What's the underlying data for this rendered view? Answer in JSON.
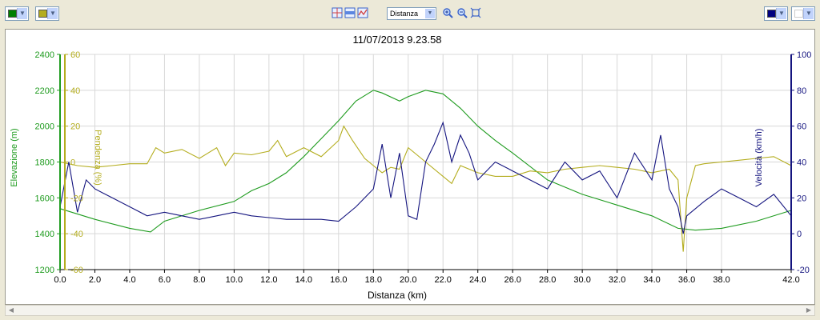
{
  "toolbar": {
    "left_color_1": "#008000",
    "left_color_2": "#b4ad1e",
    "right_color_1": "#000080",
    "right_color_2": "#ffffff",
    "mode_select": "Distanza",
    "icons": [
      "grid-icon",
      "band-icon",
      "line-chart-icon",
      "zoom-in-icon",
      "zoom-out-icon",
      "zoom-fit-icon"
    ]
  },
  "colors": {
    "elevation": "#1e9b1e",
    "slope": "#b4ad1e",
    "speed": "#14147f"
  },
  "chart_data": {
    "type": "line",
    "title": "11/07/2013 9.23.58",
    "xlabel": "Distanza (km)",
    "xlim": [
      0,
      42
    ],
    "xticks": [
      "0.0",
      "2.0",
      "4.0",
      "6.0",
      "8.0",
      "10.0",
      "12.0",
      "14.0",
      "16.0",
      "18.0",
      "20.0",
      "22.0",
      "24.0",
      "26.0",
      "28.0",
      "30.0",
      "32.0",
      "34.0",
      "36.0",
      "38.0",
      "42.0"
    ],
    "xtick_values": [
      0,
      2,
      4,
      6,
      8,
      10,
      12,
      14,
      16,
      18,
      20,
      22,
      24,
      26,
      28,
      30,
      32,
      34,
      36,
      38,
      42
    ],
    "grid": true,
    "axes": {
      "elevation": {
        "label": "Elevazione (m)",
        "range": [
          1200,
          2400
        ],
        "ticks": [
          "1200",
          "1400",
          "1600",
          "1800",
          "2000",
          "2200",
          "2400"
        ]
      },
      "slope": {
        "label": "Pendenza (%)",
        "range": [
          -60,
          60
        ],
        "ticks": [
          "-60",
          "-40",
          "-20",
          "0",
          "20",
          "40",
          "60"
        ]
      },
      "speed": {
        "label": "Velocità (km/h)",
        "range": [
          -20,
          100
        ],
        "ticks": [
          "-20",
          "0",
          "20",
          "40",
          "60",
          "80",
          "100"
        ]
      }
    },
    "series": [
      {
        "name": "Elevazione (m)",
        "axis": "elevation",
        "x": [
          0,
          2,
          4,
          5.2,
          6,
          8,
          10,
          11,
          12,
          13,
          14,
          15,
          16,
          17,
          18,
          18.5,
          19.5,
          20,
          21,
          22,
          23,
          24,
          25,
          26,
          28,
          30,
          32,
          34,
          35.5,
          36.5,
          38,
          40,
          42
        ],
        "y": [
          1540,
          1480,
          1430,
          1410,
          1470,
          1530,
          1580,
          1640,
          1680,
          1740,
          1830,
          1930,
          2030,
          2140,
          2200,
          2185,
          2140,
          2165,
          2200,
          2180,
          2100,
          2000,
          1920,
          1850,
          1700,
          1620,
          1560,
          1500,
          1430,
          1420,
          1430,
          1470,
          1530
        ]
      },
      {
        "name": "Pendenza (%)",
        "axis": "slope",
        "x": [
          0,
          1,
          2,
          3,
          4,
          5,
          5.5,
          6,
          7,
          8,
          9,
          9.5,
          10,
          11,
          12,
          12.5,
          13,
          14,
          15,
          16,
          16.3,
          16.8,
          17.5,
          18,
          18.5,
          19,
          19.5,
          20,
          20.5,
          21,
          22,
          22.5,
          23,
          24,
          25,
          26,
          27,
          28,
          29,
          30,
          31,
          32,
          33,
          34,
          35,
          35.5,
          35.8,
          36,
          36.5,
          37,
          38,
          39,
          40,
          41,
          42
        ],
        "y": [
          0,
          -2,
          -3,
          -2,
          -1,
          -1,
          8,
          5,
          7,
          2,
          8,
          -2,
          5,
          4,
          6,
          12,
          3,
          8,
          3,
          12,
          20,
          12,
          2,
          -2,
          -6,
          -3,
          -4,
          8,
          4,
          0,
          -8,
          -12,
          -2,
          -6,
          -8,
          -8,
          -5,
          -6,
          -4,
          -3,
          -2,
          -3,
          -4,
          -6,
          -4,
          -10,
          -50,
          -20,
          -2,
          -1,
          0,
          1,
          2,
          3,
          -2
        ]
      },
      {
        "name": "Velocità (km/h)",
        "axis": "speed",
        "x": [
          0,
          0.5,
          1,
          1.5,
          2,
          3,
          4,
          5,
          6,
          7,
          8,
          9,
          10,
          11,
          12,
          13,
          14,
          15,
          16,
          17,
          18,
          18.5,
          19,
          19.5,
          20,
          20.5,
          21,
          21.5,
          22,
          22.5,
          23,
          23.5,
          24,
          25,
          26,
          27,
          28,
          29,
          30,
          31,
          32,
          33,
          34,
          34.5,
          35,
          35.5,
          35.8,
          36,
          37,
          38,
          39,
          40,
          41,
          42
        ],
        "y": [
          15,
          40,
          12,
          30,
          25,
          20,
          15,
          10,
          12,
          10,
          8,
          10,
          12,
          10,
          9,
          8,
          8,
          8,
          7,
          15,
          25,
          50,
          20,
          45,
          10,
          8,
          40,
          50,
          62,
          40,
          55,
          45,
          30,
          40,
          35,
          30,
          25,
          40,
          30,
          35,
          20,
          45,
          30,
          55,
          25,
          15,
          0,
          10,
          18,
          25,
          20,
          15,
          22,
          10
        ]
      }
    ]
  }
}
